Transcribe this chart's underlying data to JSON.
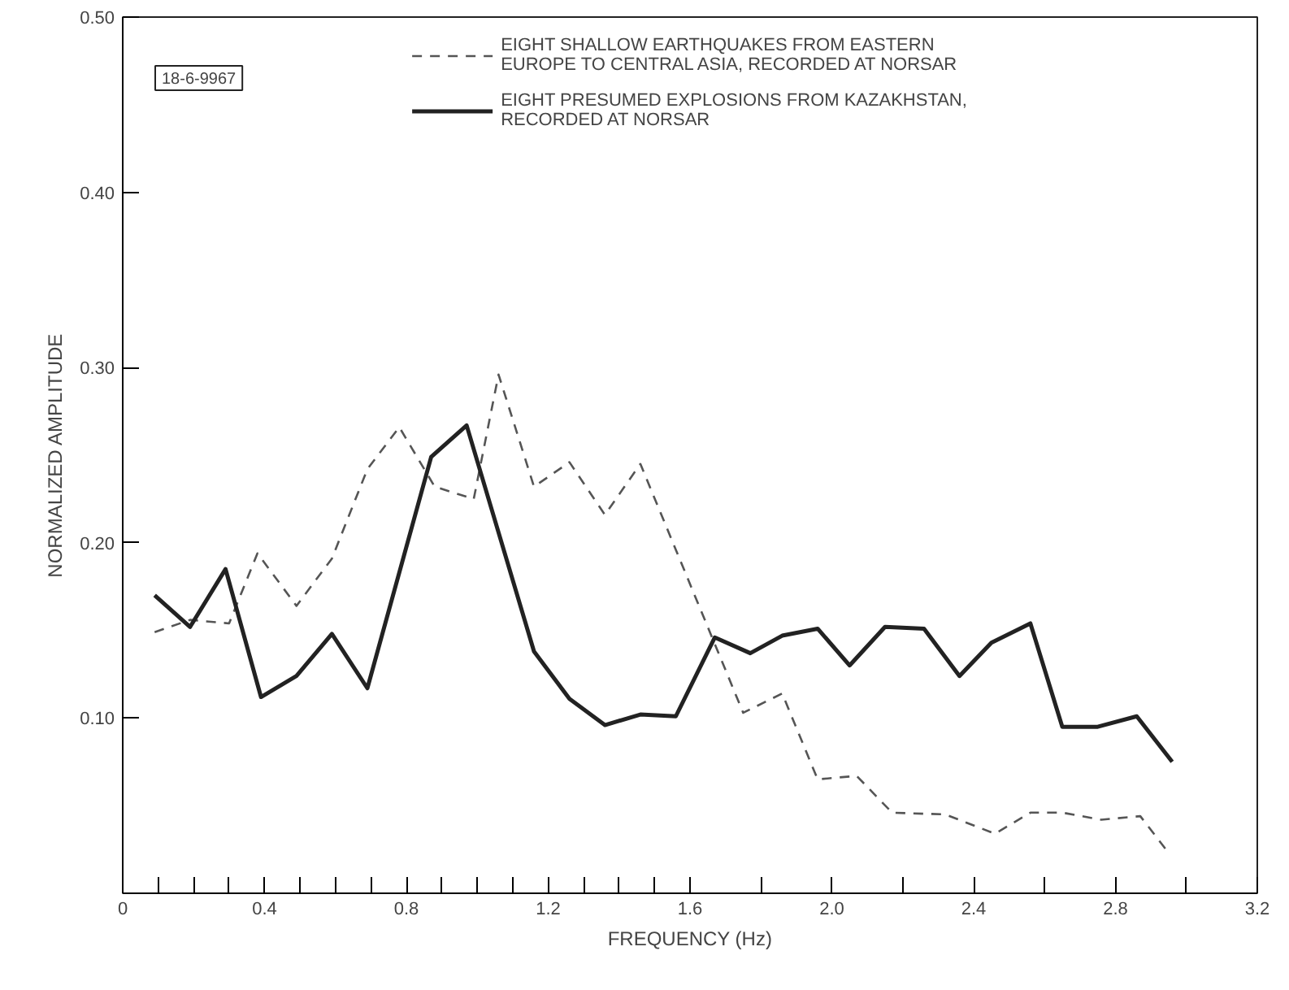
{
  "chart_data": {
    "type": "line",
    "xlabel": "FREQUENCY (Hz)",
    "ylabel": "NORMALIZED AMPLITUDE",
    "annotations": [
      "18-6-9967"
    ],
    "series": [
      {
        "name": "EIGHT SHALLOW EARTHQUAKES FROM EASTERN\nEUROPE TO CENTRAL ASIA, RECORDED AT NORSAR",
        "color": "#555555",
        "line_style": "dashed",
        "x": [
          0.09,
          0.19,
          0.3,
          0.38,
          0.49,
          0.59,
          0.69,
          0.78,
          0.88,
          0.99,
          1.06,
          1.16,
          1.26,
          1.36,
          1.46,
          1.75,
          1.86,
          1.96,
          2.07,
          2.17,
          2.32,
          2.46,
          2.56,
          2.65,
          2.76,
          2.87,
          2.95
        ],
        "values": [
          0.149,
          0.156,
          0.154,
          0.194,
          0.164,
          0.191,
          0.242,
          0.266,
          0.232,
          0.225,
          0.296,
          0.232,
          0.246,
          0.216,
          0.245,
          0.103,
          0.114,
          0.065,
          0.067,
          0.046,
          0.045,
          0.034,
          0.046,
          0.046,
          0.042,
          0.044,
          0.023
        ]
      },
      {
        "name": "EIGHT PRESUMED EXPLOSIONS FROM KAZAKHSTAN,\nRECORDED AT NORSAR",
        "color": "#222222",
        "line_style": "solid",
        "x": [
          0.09,
          0.19,
          0.29,
          0.39,
          0.49,
          0.59,
          0.69,
          0.87,
          0.97,
          1.16,
          1.26,
          1.36,
          1.46,
          1.56,
          1.67,
          1.77,
          1.86,
          1.96,
          2.05,
          2.15,
          2.26,
          2.36,
          2.45,
          2.56,
          2.65,
          2.75,
          2.86,
          2.96
        ],
        "values": [
          0.17,
          0.152,
          0.185,
          0.112,
          0.124,
          0.148,
          0.117,
          0.249,
          0.267,
          0.138,
          0.111,
          0.096,
          0.102,
          0.101,
          0.146,
          0.137,
          0.147,
          0.151,
          0.13,
          0.152,
          0.151,
          0.124,
          0.143,
          0.154,
          0.095,
          0.095,
          0.101,
          0.075
        ]
      }
    ],
    "xlim": [
      0,
      3.2
    ],
    "ylim": [
      0,
      0.5
    ],
    "xticks": [
      0,
      {
        "value": 0.1,
        "label": null
      },
      {
        "value": 0.2,
        "label": null
      },
      {
        "value": 0.3,
        "label": null
      },
      0.4,
      {
        "value": 0.5,
        "label": null
      },
      {
        "value": 0.6,
        "label": null
      },
      {
        "value": 0.7,
        "label": null
      },
      0.8,
      {
        "value": 0.9,
        "label": null
      },
      {
        "value": 1.0,
        "label": null
      },
      {
        "value": 1.1,
        "label": null
      },
      1.2,
      {
        "value": 1.3,
        "label": null
      },
      {
        "value": 1.4,
        "label": null
      },
      {
        "value": 1.5,
        "label": null
      },
      1.6,
      {
        "value": 1.8,
        "label": null
      },
      {
        "value": 2.0,
        "label": "2.0"
      },
      {
        "value": 2.2,
        "label": null
      },
      2.4,
      {
        "value": 2.6,
        "label": null
      },
      2.8,
      {
        "value": 3.0,
        "label": null
      },
      3.2
    ],
    "yticks": [
      {
        "value": 0.1,
        "label": "0.10"
      },
      {
        "value": 0.2,
        "label": "0.20"
      },
      {
        "value": 0.3,
        "label": "0.30"
      },
      {
        "value": 0.4,
        "label": "0.40"
      },
      {
        "value": 0.5,
        "label": "0.50"
      }
    ],
    "grid": false,
    "legend": "top",
    "marker": "none"
  }
}
